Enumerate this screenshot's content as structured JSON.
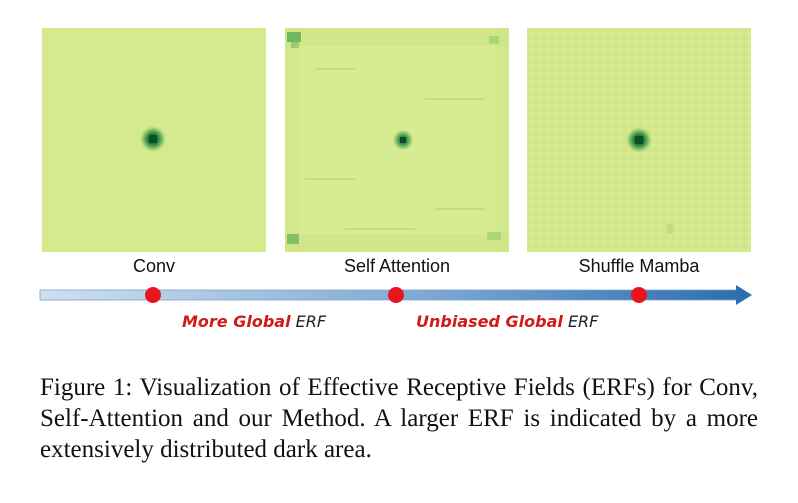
{
  "figure": {
    "panels": [
      {
        "label": "Conv",
        "pattern": "single-dark-center"
      },
      {
        "label": "Self Attention",
        "pattern": "dark-center-plus-edge-noise"
      },
      {
        "label": "Shuffle Mamba",
        "pattern": "dark-center-uniform-texture"
      }
    ],
    "arrow": {
      "colors": {
        "start": "#cfe0ef",
        "end": "#2e6fb0",
        "dot": "#e8161c"
      },
      "labels": [
        {
          "highlight": "More Global",
          "suffix": " ERF"
        },
        {
          "highlight": "Unbiased Global",
          "suffix": " ERF"
        }
      ]
    },
    "colors": {
      "map_background": "#d5ea8e",
      "map_dark": "#0f5a2e",
      "highlight_text": "#d11a1a"
    },
    "caption": "Figure 1: Visualization of Effective Receptive Fields (ERFs) for Conv, Self-Attention and our Method. A larger ERF is indicated by a more extensively distributed dark area."
  }
}
